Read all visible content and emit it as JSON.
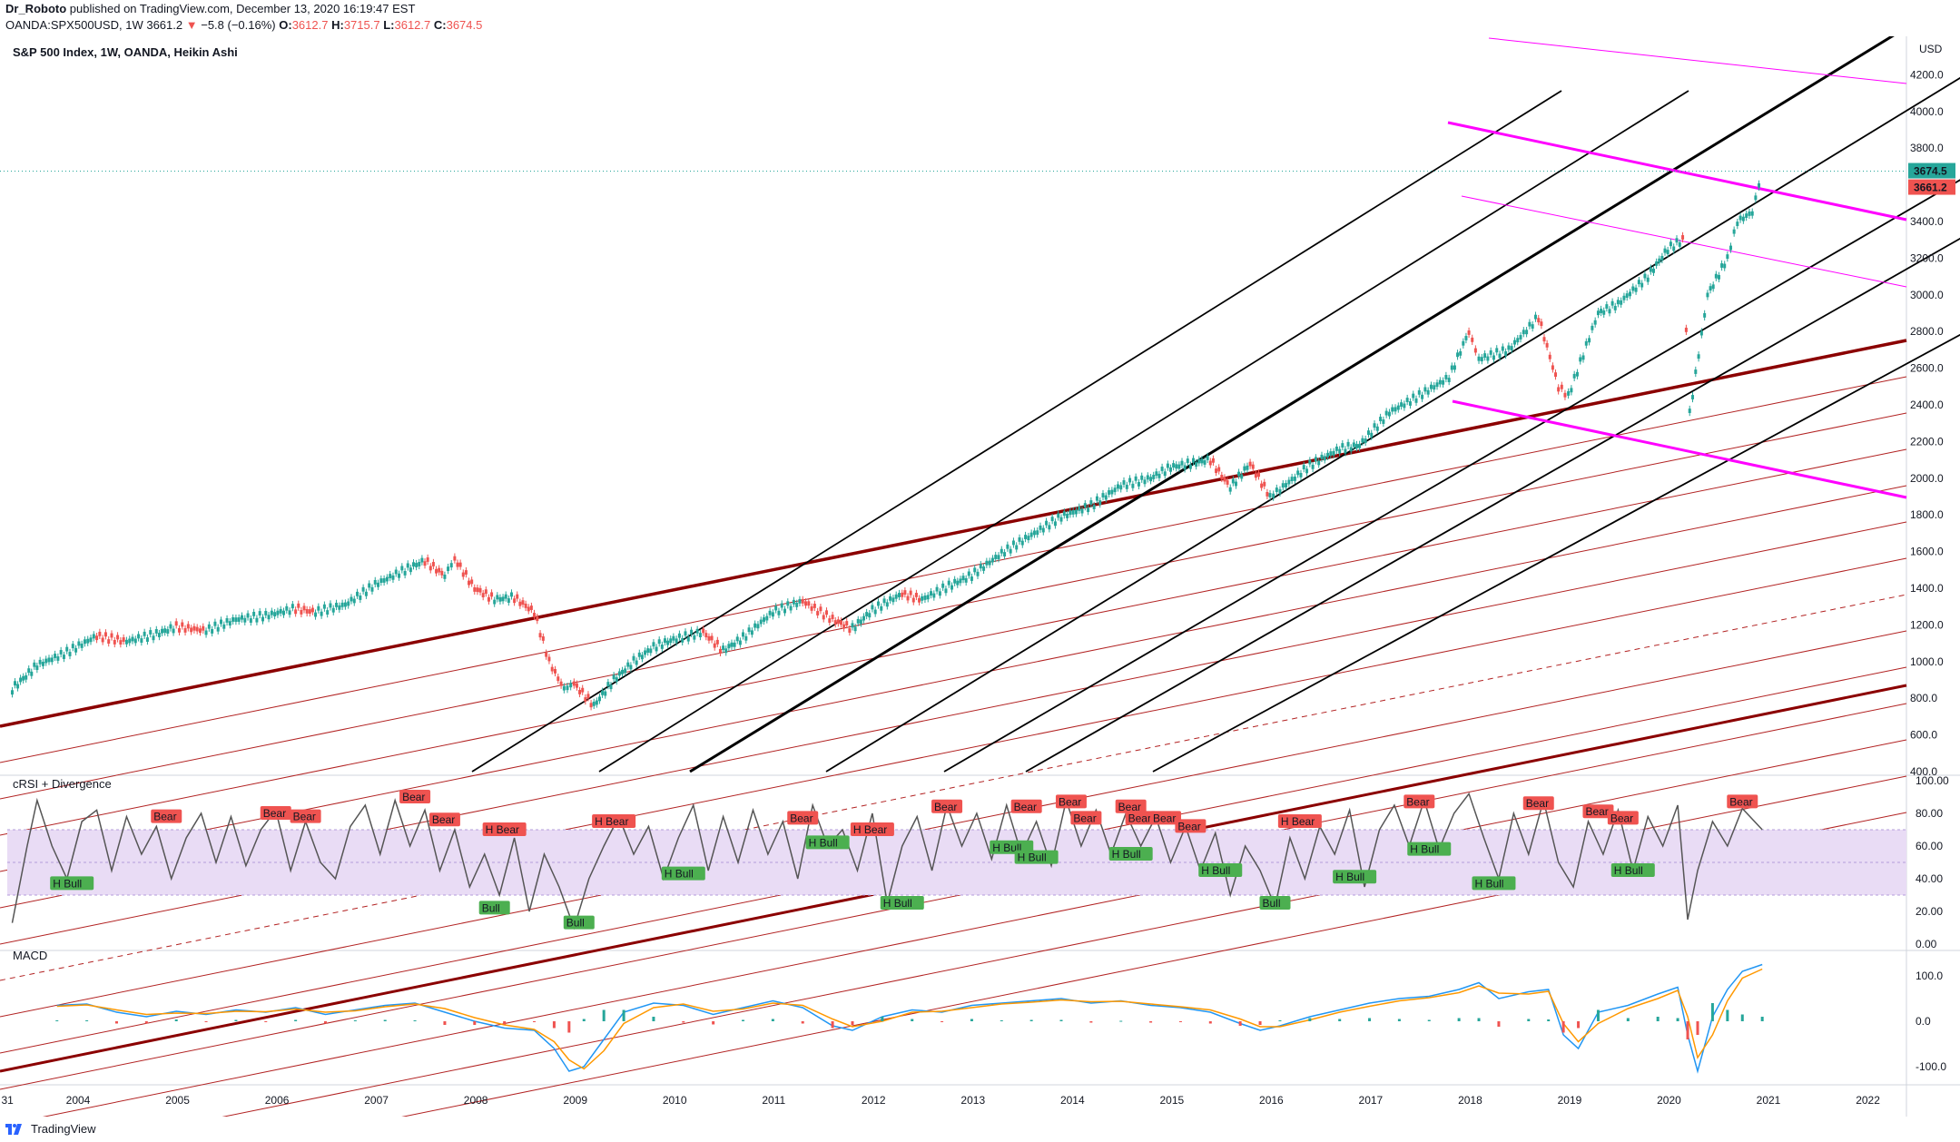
{
  "header": {
    "author": "Dr_Roboto",
    "published": "published on TradingView.com, December 13, 2020 16:19:47 EST",
    "symbol": "OANDA:SPX500USD, 1W",
    "last": "3661.2",
    "change": "−5.8 (−0.16%)",
    "o_label": "O:",
    "o_val": "3612.7",
    "h_label": "H:",
    "h_val": "3715.7",
    "l_label": "L:",
    "l_val": "3612.7",
    "c_label": "C:",
    "c_val": "3674.5"
  },
  "colors": {
    "up": "#26a69a",
    "down": "#ef5350",
    "trend_dark": "#8b0000",
    "trend_mid": "#b22222",
    "black": "#000000",
    "magenta": "#ff00ff",
    "rsi_line": "#555555",
    "rsi_band": "#e9dcf5",
    "macd": "#2196f3",
    "signal": "#ff9800",
    "grid": "#f0f3fa",
    "text": "#131722"
  },
  "footer": {
    "brand": "TradingView",
    "logo_icon": "tradingview-logo-icon"
  },
  "chart_data": [
    {
      "type": "line",
      "title": "S&P 500 Index, 1W, OANDA, Heikin Ashi",
      "currency": "USD",
      "ylim": [
        400,
        4400
      ],
      "y_ticks": [
        400,
        600,
        800,
        1000,
        1200,
        1400,
        1600,
        1800,
        2000,
        2200,
        2400,
        2600,
        2800,
        3000,
        3200,
        3400,
        3600,
        3800,
        4000,
        4200
      ],
      "x_ticks": [
        "31",
        "2004",
        "2005",
        "2006",
        "2007",
        "2008",
        "2009",
        "2010",
        "2011",
        "2012",
        "2013",
        "2014",
        "2015",
        "2016",
        "2017",
        "2018",
        "2019",
        "2020",
        "2021",
        "2022"
      ],
      "xlim": [
        2003.3,
        2022.4
      ],
      "last_price_label": "3674.5",
      "prev_price_label": "3661.2",
      "series": [
        {
          "x": [
            2003.35,
            2003.6,
            2003.9,
            2004.2,
            2004.5,
            2004.8,
            2005.0,
            2005.3,
            2005.6,
            2005.9,
            2006.2,
            2006.4,
            2006.7,
            2007.0,
            2007.3,
            2007.5,
            2007.7,
            2007.8,
            2008.0,
            2008.2,
            2008.4,
            2008.6,
            2008.75,
            2008.9,
            2009.0,
            2009.2,
            2009.4,
            2009.6,
            2009.8,
            2010.0,
            2010.3,
            2010.5,
            2010.7,
            2011.0,
            2011.3,
            2011.6,
            2011.8,
            2012.0,
            2012.3,
            2012.5,
            2012.8,
            2013.0,
            2013.3,
            2013.6,
            2013.9,
            2014.2,
            2014.5,
            2014.8,
            2015.0,
            2015.4,
            2015.6,
            2015.8,
            2016.0,
            2016.1,
            2016.4,
            2016.7,
            2016.9,
            2017.2,
            2017.5,
            2017.8,
            2018.0,
            2018.1,
            2018.4,
            2018.7,
            2018.9,
            2019.0,
            2019.3,
            2019.5,
            2019.8,
            2020.0,
            2020.15,
            2020.22,
            2020.4,
            2020.6,
            2020.7,
            2020.85,
            2020.95
          ],
          "y": [
            850,
            980,
            1050,
            1140,
            1110,
            1150,
            1190,
            1170,
            1230,
            1250,
            1290,
            1270,
            1310,
            1420,
            1500,
            1550,
            1470,
            1560,
            1400,
            1340,
            1350,
            1270,
            1000,
            850,
            880,
            760,
            900,
            1000,
            1080,
            1120,
            1160,
            1060,
            1130,
            1270,
            1330,
            1230,
            1180,
            1280,
            1370,
            1340,
            1420,
            1470,
            1590,
            1690,
            1790,
            1850,
            1960,
            2000,
            2060,
            2100,
            1950,
            2080,
            1900,
            1940,
            2070,
            2160,
            2180,
            2360,
            2450,
            2550,
            2800,
            2650,
            2700,
            2880,
            2500,
            2450,
            2900,
            2950,
            3100,
            3250,
            3300,
            2350,
            3000,
            3200,
            3400,
            3450,
            3674.5
          ],
          "name": ""
        }
      ]
    },
    {
      "type": "line",
      "title": "cRSI + Divergence",
      "ylim": [
        0,
        100
      ],
      "y_ticks": [
        0,
        20,
        40,
        60,
        80,
        100
      ],
      "band": [
        30,
        70
      ],
      "labels": [
        {
          "text": "H Bull",
          "x": 2003.95,
          "y": 37,
          "kind": "bull"
        },
        {
          "text": "Bear",
          "x": 2004.9,
          "y": 78,
          "kind": "bear"
        },
        {
          "text": "Bear",
          "x": 2006.0,
          "y": 80,
          "kind": "bear"
        },
        {
          "text": "Bear",
          "x": 2006.3,
          "y": 78,
          "kind": "bear"
        },
        {
          "text": "Bear",
          "x": 2007.4,
          "y": 90,
          "kind": "bear"
        },
        {
          "text": "Bear",
          "x": 2007.7,
          "y": 76,
          "kind": "bear"
        },
        {
          "text": "H Bear",
          "x": 2008.3,
          "y": 70,
          "kind": "bear"
        },
        {
          "text": "Bull",
          "x": 2008.2,
          "y": 22,
          "kind": "bull"
        },
        {
          "text": "Bull",
          "x": 2009.05,
          "y": 13,
          "kind": "bull"
        },
        {
          "text": "H Bear",
          "x": 2009.4,
          "y": 75,
          "kind": "bear"
        },
        {
          "text": "H Bull",
          "x": 2010.1,
          "y": 43,
          "kind": "bull"
        },
        {
          "text": "Bear",
          "x": 2011.3,
          "y": 77,
          "kind": "bear"
        },
        {
          "text": "H Bull",
          "x": 2011.55,
          "y": 62,
          "kind": "bull"
        },
        {
          "text": "H Bear",
          "x": 2012.0,
          "y": 70,
          "kind": "bear"
        },
        {
          "text": "H Bull",
          "x": 2012.3,
          "y": 25,
          "kind": "bull"
        },
        {
          "text": "Bear",
          "x": 2012.75,
          "y": 84,
          "kind": "bear"
        },
        {
          "text": "Bear",
          "x": 2013.55,
          "y": 84,
          "kind": "bear"
        },
        {
          "text": "H Bull",
          "x": 2013.4,
          "y": 59,
          "kind": "bull"
        },
        {
          "text": "H Bull",
          "x": 2013.65,
          "y": 53,
          "kind": "bull"
        },
        {
          "text": "Bear",
          "x": 2014.0,
          "y": 87,
          "kind": "bear"
        },
        {
          "text": "Bear",
          "x": 2014.15,
          "y": 77,
          "kind": "bear"
        },
        {
          "text": "Bear",
          "x": 2014.6,
          "y": 84,
          "kind": "bear"
        },
        {
          "text": "H Bull",
          "x": 2014.6,
          "y": 55,
          "kind": "bull"
        },
        {
          "text": "Bear",
          "x": 2014.7,
          "y": 77,
          "kind": "bear"
        },
        {
          "text": "Bear",
          "x": 2014.95,
          "y": 77,
          "kind": "bear"
        },
        {
          "text": "Bear",
          "x": 2015.2,
          "y": 72,
          "kind": "bear"
        },
        {
          "text": "H Bull",
          "x": 2015.5,
          "y": 45,
          "kind": "bull"
        },
        {
          "text": "Bull",
          "x": 2016.05,
          "y": 25,
          "kind": "bull"
        },
        {
          "text": "H Bear",
          "x": 2016.3,
          "y": 75,
          "kind": "bear"
        },
        {
          "text": "H Bull",
          "x": 2016.85,
          "y": 41,
          "kind": "bull"
        },
        {
          "text": "Bear",
          "x": 2017.5,
          "y": 87,
          "kind": "bear"
        },
        {
          "text": "H Bull",
          "x": 2017.6,
          "y": 58,
          "kind": "bull"
        },
        {
          "text": "H Bull",
          "x": 2018.25,
          "y": 37,
          "kind": "bull"
        },
        {
          "text": "Bear",
          "x": 2018.7,
          "y": 86,
          "kind": "bear"
        },
        {
          "text": "Bear",
          "x": 2019.3,
          "y": 81,
          "kind": "bear"
        },
        {
          "text": "Bear",
          "x": 2019.55,
          "y": 77,
          "kind": "bear"
        },
        {
          "text": "H Bull",
          "x": 2019.65,
          "y": 45,
          "kind": "bull"
        },
        {
          "text": "Bear",
          "x": 2020.75,
          "y": 87,
          "kind": "bear"
        }
      ],
      "series": [
        {
          "x": [
            2003.35,
            2003.5,
            2003.6,
            2003.75,
            2003.9,
            2004.05,
            2004.2,
            2004.35,
            2004.5,
            2004.65,
            2004.8,
            2004.95,
            2005.1,
            2005.25,
            2005.4,
            2005.55,
            2005.7,
            2005.85,
            2006.0,
            2006.15,
            2006.3,
            2006.45,
            2006.6,
            2006.75,
            2006.9,
            2007.05,
            2007.2,
            2007.35,
            2007.5,
            2007.65,
            2007.8,
            2007.95,
            2008.1,
            2008.25,
            2008.4,
            2008.55,
            2008.7,
            2008.85,
            2009.0,
            2009.15,
            2009.3,
            2009.45,
            2009.6,
            2009.75,
            2009.9,
            2010.05,
            2010.2,
            2010.35,
            2010.5,
            2010.65,
            2010.8,
            2010.95,
            2011.1,
            2011.25,
            2011.4,
            2011.55,
            2011.7,
            2011.85,
            2012.0,
            2012.15,
            2012.3,
            2012.45,
            2012.6,
            2012.75,
            2012.9,
            2013.05,
            2013.2,
            2013.35,
            2013.5,
            2013.65,
            2013.8,
            2013.95,
            2014.1,
            2014.25,
            2014.4,
            2014.55,
            2014.7,
            2014.85,
            2015.0,
            2015.15,
            2015.3,
            2015.45,
            2015.6,
            2015.75,
            2015.9,
            2016.05,
            2016.2,
            2016.35,
            2016.5,
            2016.65,
            2016.8,
            2016.95,
            2017.1,
            2017.25,
            2017.4,
            2017.55,
            2017.7,
            2017.85,
            2018.0,
            2018.15,
            2018.3,
            2018.45,
            2018.6,
            2018.75,
            2018.9,
            2019.05,
            2019.2,
            2019.35,
            2019.5,
            2019.65,
            2019.8,
            2019.95,
            2020.1,
            2020.2,
            2020.3,
            2020.45,
            2020.6,
            2020.75,
            2020.95
          ],
          "y": [
            13,
            60,
            88,
            60,
            40,
            75,
            82,
            45,
            78,
            55,
            72,
            40,
            65,
            80,
            50,
            78,
            48,
            70,
            82,
            45,
            75,
            50,
            40,
            72,
            85,
            55,
            88,
            60,
            82,
            45,
            70,
            35,
            55,
            30,
            65,
            20,
            55,
            35,
            10,
            40,
            60,
            78,
            55,
            72,
            40,
            65,
            85,
            45,
            78,
            50,
            82,
            55,
            75,
            40,
            85,
            60,
            70,
            45,
            80,
            25,
            60,
            78,
            45,
            85,
            60,
            80,
            52,
            85,
            55,
            75,
            48,
            88,
            60,
            82,
            55,
            80,
            60,
            78,
            50,
            72,
            45,
            68,
            30,
            60,
            45,
            23,
            65,
            40,
            72,
            55,
            82,
            35,
            70,
            85,
            60,
            88,
            58,
            80,
            92,
            65,
            40,
            80,
            55,
            88,
            50,
            35,
            75,
            55,
            82,
            45,
            78,
            60,
            85,
            15,
            45,
            75,
            60,
            83,
            70
          ],
          "name": ""
        }
      ]
    },
    {
      "type": "line",
      "title": "MACD",
      "ylim": [
        -130,
        140
      ],
      "y_ticks": [
        -100,
        0,
        100
      ],
      "series": [
        {
          "name": "",
          "x": [
            2003.8,
            2004.1,
            2004.4,
            2004.7,
            2005.0,
            2005.3,
            2005.6,
            2005.9,
            2006.2,
            2006.5,
            2006.8,
            2007.1,
            2007.4,
            2007.7,
            2008.0,
            2008.3,
            2008.6,
            2008.8,
            2008.95,
            2009.1,
            2009.3,
            2009.5,
            2009.8,
            2010.1,
            2010.4,
            2010.7,
            2011.0,
            2011.3,
            2011.6,
            2011.8,
            2012.1,
            2012.4,
            2012.7,
            2013.0,
            2013.3,
            2013.6,
            2013.9,
            2014.2,
            2014.5,
            2014.8,
            2015.1,
            2015.4,
            2015.7,
            2015.9,
            2016.1,
            2016.4,
            2016.7,
            2017.0,
            2017.3,
            2017.6,
            2017.9,
            2018.1,
            2018.3,
            2018.6,
            2018.8,
            2018.95,
            2019.1,
            2019.3,
            2019.6,
            2019.9,
            2020.1,
            2020.2,
            2020.3,
            2020.45,
            2020.6,
            2020.75,
            2020.95
          ],
          "y": [
            35,
            38,
            20,
            10,
            22,
            15,
            25,
            20,
            30,
            15,
            25,
            35,
            40,
            20,
            0,
            -15,
            -20,
            -60,
            -110,
            -100,
            -40,
            20,
            40,
            35,
            15,
            30,
            45,
            30,
            -10,
            -20,
            10,
            25,
            20,
            35,
            40,
            45,
            50,
            40,
            45,
            35,
            30,
            20,
            -5,
            -20,
            -10,
            10,
            25,
            40,
            50,
            55,
            70,
            85,
            50,
            65,
            70,
            -30,
            -60,
            20,
            35,
            60,
            75,
            -30,
            -110,
            10,
            70,
            110,
            125
          ]
        },
        {
          "name": "",
          "x": [
            2003.8,
            2004.1,
            2004.4,
            2004.7,
            2005.0,
            2005.3,
            2005.6,
            2005.9,
            2006.2,
            2006.5,
            2006.8,
            2007.1,
            2007.4,
            2007.7,
            2008.0,
            2008.3,
            2008.6,
            2008.8,
            2008.95,
            2009.1,
            2009.3,
            2009.5,
            2009.8,
            2010.1,
            2010.4,
            2010.7,
            2011.0,
            2011.3,
            2011.6,
            2011.8,
            2012.1,
            2012.4,
            2012.7,
            2013.0,
            2013.3,
            2013.6,
            2013.9,
            2014.2,
            2014.5,
            2014.8,
            2015.1,
            2015.4,
            2015.7,
            2015.9,
            2016.1,
            2016.4,
            2016.7,
            2017.0,
            2017.3,
            2017.6,
            2017.9,
            2018.1,
            2018.3,
            2018.6,
            2018.8,
            2018.95,
            2019.1,
            2019.3,
            2019.6,
            2019.9,
            2020.1,
            2020.2,
            2020.3,
            2020.45,
            2020.6,
            2020.75,
            2020.95
          ],
          "y": [
            33,
            36,
            25,
            15,
            18,
            17,
            22,
            21,
            27,
            20,
            23,
            32,
            38,
            28,
            8,
            -8,
            -18,
            -45,
            -85,
            -105,
            -65,
            -5,
            30,
            38,
            22,
            27,
            40,
            35,
            5,
            -12,
            0,
            20,
            22,
            30,
            38,
            42,
            47,
            43,
            44,
            38,
            32,
            25,
            5,
            -12,
            -12,
            3,
            20,
            33,
            45,
            52,
            63,
            78,
            62,
            60,
            66,
            -5,
            -45,
            -5,
            28,
            50,
            68,
            10,
            -80,
            -30,
            45,
            95,
            115
          ]
        }
      ]
    }
  ]
}
